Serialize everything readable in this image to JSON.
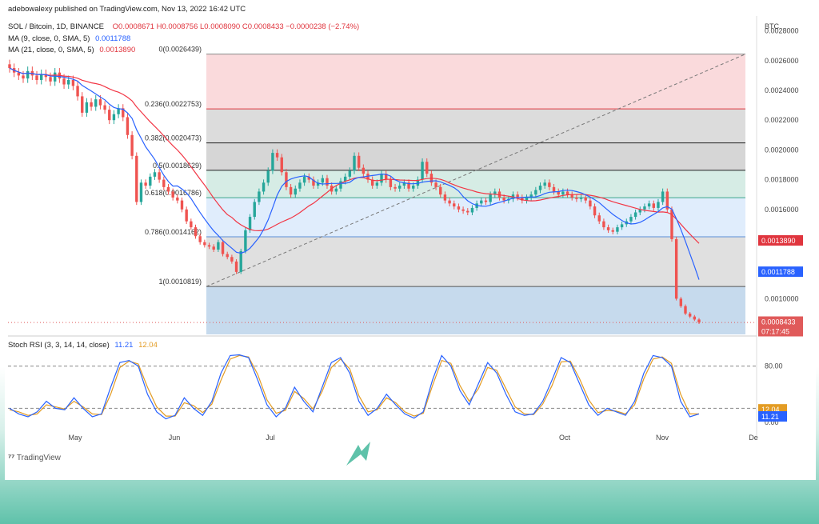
{
  "header": {
    "published": "adebowalexy published on TradingView.com, Nov 13, 2022 16:42 UTC",
    "symbol_line": "SOL / Bitcoin, 1D, BINANCE",
    "ohlc": "O0.0008671  H0.0008756  L0.0008090  C0.0008433  −0.0000238 (−2.74%)",
    "ma9_label": "MA (9, close, 0, SMA, 5)",
    "ma9_value": "0.0011788",
    "ma21_label": "MA (21, close, 0, SMA, 5)",
    "ma21_value": "0.0013890"
  },
  "price_axis": {
    "currency": "BTC",
    "ticks": [
      "0.0028000",
      "0.0026000",
      "0.0024000",
      "0.0022000",
      "0.0020000",
      "0.0018000",
      "0.0016000",
      "0.0010000"
    ],
    "tick_values": [
      0.0028,
      0.0026,
      0.0024,
      0.0022,
      0.002,
      0.0018,
      0.0016,
      0.001
    ],
    "tags": [
      {
        "text": "0.0013890",
        "value": 0.001389,
        "color": "#e0353e"
      },
      {
        "text": "0.0011788",
        "value": 0.0011788,
        "color": "#2962ff"
      },
      {
        "text": "0.0008433",
        "value": 0.0008433,
        "color": "#e05a5a"
      },
      {
        "text": "07:17:45",
        "value": 0.0008,
        "color": "#e05a5a"
      }
    ]
  },
  "fib_levels": [
    {
      "label": "0(0.0026439)",
      "value": 0.0026439,
      "color": "#888888"
    },
    {
      "label": "0.236(0.0022753)",
      "value": 0.0022753,
      "color": "#e0353e"
    },
    {
      "label": "0.382(0.0020473)",
      "value": 0.0020473,
      "color": "#222222"
    },
    {
      "label": "0.5(0.0018629)",
      "value": 0.0018629,
      "color": "#222222"
    },
    {
      "label": "0.618(0.0016786)",
      "value": 0.0016786,
      "color": "#3aa58a"
    },
    {
      "label": "0.786(0.0014162)",
      "value": 0.0014162,
      "color": "#5b8fd6"
    },
    {
      "label": "1(0.0010819)",
      "value": 0.0010819,
      "color": "#555555"
    }
  ],
  "fib_zone_colors": [
    "#f9d3d6",
    "#d6d6d6",
    "#cfcfcf",
    "#cfe9e1",
    "#dbeafb",
    "#dadada",
    "#bcd4ea"
  ],
  "stoch": {
    "label": "Stoch RSI (3, 3, 14, 14, close)",
    "k_value": "11.21",
    "d_value": "12.04",
    "k_color": "#2962ff",
    "d_color": "#e39c24",
    "ticks": [
      "80.00",
      "0.00"
    ],
    "tick_values": [
      80,
      0
    ],
    "bands": [
      80,
      20
    ],
    "k": [
      20,
      12,
      8,
      15,
      30,
      20,
      18,
      35,
      20,
      8,
      12,
      50,
      85,
      88,
      80,
      40,
      15,
      5,
      10,
      35,
      20,
      10,
      30,
      70,
      95,
      96,
      92,
      60,
      25,
      8,
      20,
      50,
      30,
      15,
      50,
      85,
      92,
      70,
      30,
      10,
      20,
      40,
      25,
      12,
      6,
      15,
      60,
      95,
      80,
      45,
      25,
      55,
      85,
      70,
      40,
      15,
      10,
      12,
      30,
      60,
      92,
      85,
      55,
      25,
      10,
      20,
      15,
      10,
      30,
      70,
      95,
      92,
      80,
      30,
      8,
      12
    ],
    "d": [
      18,
      15,
      10,
      12,
      25,
      22,
      19,
      30,
      22,
      12,
      11,
      40,
      78,
      87,
      83,
      50,
      22,
      9,
      9,
      28,
      24,
      14,
      26,
      60,
      90,
      95,
      93,
      68,
      32,
      13,
      17,
      44,
      34,
      19,
      44,
      78,
      90,
      76,
      38,
      15,
      18,
      35,
      28,
      15,
      9,
      13,
      52,
      88,
      84,
      52,
      30,
      48,
      78,
      74,
      48,
      22,
      12,
      11,
      26,
      52,
      86,
      87,
      62,
      32,
      14,
      17,
      16,
      12,
      25,
      62,
      90,
      93,
      84,
      40,
      12,
      12
    ]
  },
  "time_axis": {
    "labels": [
      "May",
      "Jun",
      "Jul",
      "Oct",
      "Nov",
      "De"
    ]
  },
  "chart_data": {
    "type": "candlestick",
    "title": "SOL / Bitcoin, 1D, BINANCE",
    "ylabel": "BTC",
    "ylim": [
      0.00076,
      0.0029
    ],
    "up_color": "#26a69a",
    "down_color": "#ef5350",
    "ma9_color": "#2962ff",
    "ma21_color": "#f23645",
    "closes": [
      0.00255,
      0.00252,
      0.0025,
      0.00248,
      0.00253,
      0.0025,
      0.00247,
      0.00251,
      0.00249,
      0.00246,
      0.00252,
      0.00248,
      0.00244,
      0.00247,
      0.00243,
      0.00236,
      0.00225,
      0.00232,
      0.00229,
      0.00234,
      0.0023,
      0.00227,
      0.0022,
      0.00224,
      0.00228,
      0.00222,
      0.0021,
      0.00196,
      0.00165,
      0.00178,
      0.00176,
      0.00182,
      0.00185,
      0.0018,
      0.00175,
      0.00172,
      0.00168,
      0.00166,
      0.0016,
      0.00152,
      0.00148,
      0.00142,
      0.00138,
      0.00136,
      0.00135,
      0.00133,
      0.00138,
      0.0013,
      0.00128,
      0.00125,
      0.00118,
      0.00132,
      0.00146,
      0.00155,
      0.00165,
      0.00172,
      0.00178,
      0.00186,
      0.00198,
      0.00195,
      0.00185,
      0.00175,
      0.0017,
      0.00174,
      0.00178,
      0.00182,
      0.0018,
      0.00176,
      0.00178,
      0.00181,
      0.00176,
      0.00172,
      0.00174,
      0.00179,
      0.00182,
      0.00186,
      0.00196,
      0.00188,
      0.00184,
      0.0018,
      0.00176,
      0.00178,
      0.00184,
      0.0018,
      0.00175,
      0.00174,
      0.00176,
      0.00178,
      0.00174,
      0.00176,
      0.0018,
      0.00192,
      0.00184,
      0.00178,
      0.00175,
      0.0017,
      0.00166,
      0.00164,
      0.00162,
      0.0016,
      0.00159,
      0.00158,
      0.00161,
      0.00164,
      0.00166,
      0.00165,
      0.0017,
      0.00172,
      0.00168,
      0.00166,
      0.00167,
      0.0017,
      0.00168,
      0.00166,
      0.00168,
      0.0017,
      0.00173,
      0.00176,
      0.00178,
      0.00175,
      0.00172,
      0.0017,
      0.00172,
      0.0017,
      0.00168,
      0.00167,
      0.00168,
      0.00166,
      0.00162,
      0.00156,
      0.00152,
      0.00148,
      0.00146,
      0.00145,
      0.00148,
      0.0015,
      0.00152,
      0.00155,
      0.00158,
      0.0016,
      0.00162,
      0.00164,
      0.00161,
      0.00165,
      0.00172,
      0.0016,
      0.0014,
      0.001,
      0.00095,
      0.0009,
      0.00088,
      0.00086,
      0.00084
    ]
  }
}
